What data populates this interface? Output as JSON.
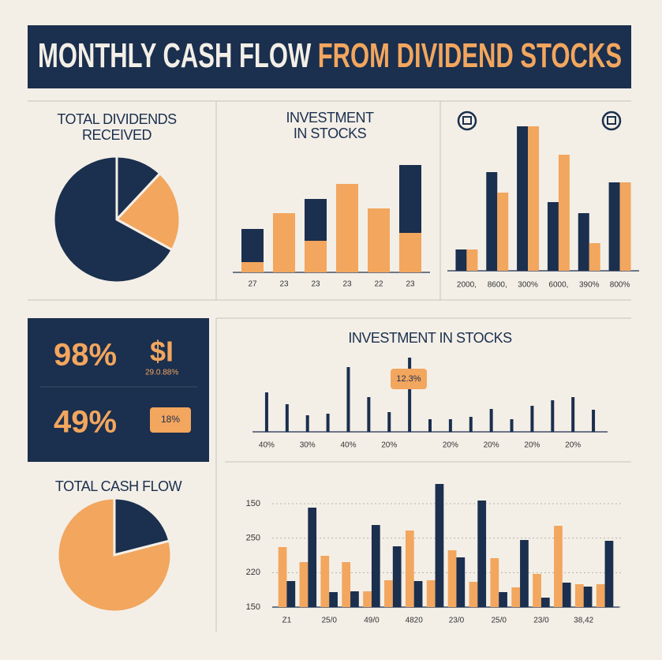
{
  "header": {
    "title_part1": "MONTHLY CASH FLOW",
    "title_part2": "FROM DIVIDEND STOCKS"
  },
  "kpis": {
    "row1_value": "98%",
    "row1_label": "$I",
    "row1_sub": "29.0.88%",
    "row2_value": "49%",
    "row2_badge": "18%"
  },
  "chart_data": [
    {
      "type": "pie",
      "title_lines": [
        "TOTAL DIVIDENDS",
        "RECEIVED"
      ],
      "values": [
        12,
        21,
        67
      ],
      "colors": [
        "#1b2f4e",
        "#f2a65e",
        "#1b2f4e"
      ]
    },
    {
      "type": "bar",
      "title_lines": [
        "INVESTMENT",
        "IN STOCKS"
      ],
      "stacked": true,
      "categories": [
        "27",
        "23",
        "23",
        "23",
        "22",
        "23"
      ],
      "ylim": [
        0,
        140
      ],
      "series": [
        {
          "name": null,
          "color": "#f2a65e",
          "values": [
            13,
            75,
            40,
            112,
            81,
            50
          ]
        },
        {
          "name": null,
          "color": "#1b2f4e",
          "values": [
            42,
            0,
            53,
            0,
            0,
            86
          ]
        }
      ]
    },
    {
      "type": "bar",
      "stacked": false,
      "categories": [
        "2000,",
        "8600,",
        "300%",
        "6000,",
        "390%",
        "800%"
      ],
      "ylim": [
        0,
        188
      ],
      "series": [
        {
          "name": null,
          "color": "#1b2f4e",
          "values": [
            27,
            125,
            183,
            87,
            73,
            112
          ]
        },
        {
          "name": null,
          "color": "#f2a65e",
          "values": [
            27,
            99,
            183,
            147,
            35,
            112
          ]
        }
      ]
    },
    {
      "type": "bar",
      "title_lines": [
        "INVESTMENT IN STOCKS"
      ],
      "stacked": false,
      "annotation": "12.3%",
      "categories": [
        "40%",
        null,
        "30%",
        null,
        "40%",
        null,
        "20%",
        null,
        null,
        "20%",
        null,
        "20%",
        null,
        "20%",
        null,
        "20%",
        null
      ],
      "ylim": [
        0,
        97
      ],
      "series": [
        {
          "name": null,
          "color": "#1b2f4e",
          "values": [
            50,
            35,
            21,
            23,
            82,
            44,
            25,
            94,
            16,
            16,
            19,
            29,
            16,
            33,
            40,
            44,
            28
          ]
        }
      ]
    },
    {
      "type": "bar",
      "stacked": false,
      "y_axis_labels": [
        "150",
        "250",
        "220",
        "150"
      ],
      "categories": [
        "Z1",
        null,
        "25/0",
        null,
        "49/0",
        null,
        "4820",
        null,
        "23/0",
        null,
        "25/0",
        null,
        "23/0",
        null,
        "38,42",
        null
      ],
      "ylim": [
        0,
        159
      ],
      "series": [
        {
          "name": null,
          "color": "#f2a65e",
          "values": [
            76,
            57,
            65,
            57,
            20,
            34,
            97,
            34,
            72,
            32,
            62,
            25,
            42,
            103,
            29,
            29
          ]
        },
        {
          "name": null,
          "color": "#1b2f4e",
          "values": [
            33,
            126,
            19,
            20,
            104,
            77,
            33,
            156,
            63,
            135,
            19,
            85,
            12,
            31,
            26,
            84
          ]
        }
      ]
    },
    {
      "type": "pie",
      "title_lines": [
        "TOTAL CASH FLOW"
      ],
      "values": [
        21,
        79
      ],
      "colors": [
        "#1b2f4e",
        "#f2a65e"
      ]
    }
  ]
}
